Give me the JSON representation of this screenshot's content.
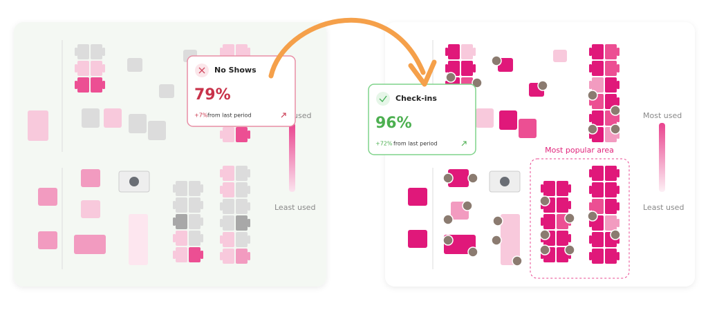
{
  "left_panel": {
    "legend": {
      "top": "used",
      "bottom": "Least used"
    },
    "card": {
      "title": "No Shows",
      "value": "79%",
      "change": "+7%",
      "change_text": "from last period"
    }
  },
  "right_panel": {
    "legend": {
      "top": "Most used",
      "bottom": "Least used"
    },
    "card": {
      "title": "Check-ins",
      "value": "96%",
      "change": "+72%",
      "change_text": "from last period"
    },
    "area_label": "Most popular area"
  }
}
